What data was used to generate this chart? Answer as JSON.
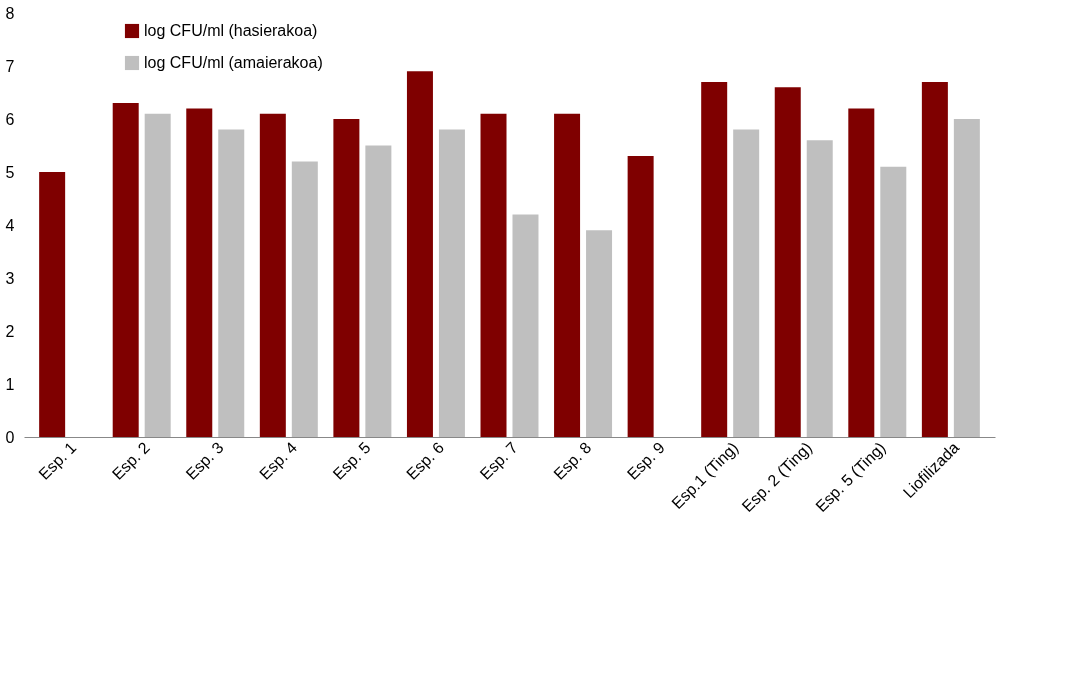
{
  "chart_data": {
    "type": "bar",
    "categories": [
      "Esp. 1",
      "Esp. 2",
      "Esp. 3",
      "Esp. 4",
      "Esp. 5",
      "Esp. 6",
      "Esp. 7",
      "Esp. 8",
      "Esp. 9",
      "Esp.1 (Ting)",
      "Esp. 2 (Ting)",
      "Esp. 5 (Ting)",
      "Liofilizada"
    ],
    "series": [
      {
        "name": "log CFU/ml (hasierakoa)",
        "color": "#7f0000",
        "values": [
          5.0,
          6.3,
          6.2,
          6.1,
          6.0,
          6.9,
          6.1,
          6.1,
          5.3,
          6.7,
          6.6,
          6.2,
          6.7
        ]
      },
      {
        "name": "log CFU/ml (amaierakoa)",
        "color": "#bfbfbf",
        "values": [
          null,
          6.1,
          5.8,
          5.2,
          5.5,
          5.8,
          4.2,
          3.9,
          null,
          5.8,
          5.6,
          5.1,
          6.0
        ]
      }
    ],
    "ylim": [
      0,
      8
    ],
    "yticks": [
      0,
      1,
      2,
      3,
      4,
      5,
      6,
      7,
      8
    ],
    "grid": false,
    "legend": "top left"
  }
}
